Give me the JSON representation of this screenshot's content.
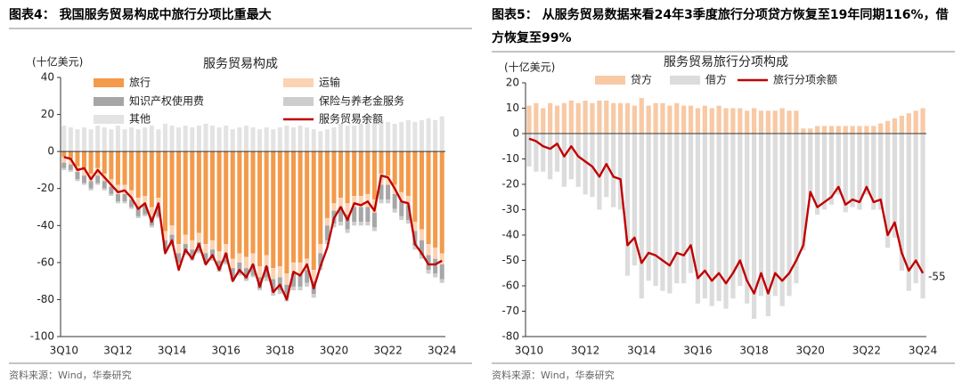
{
  "chart_data": [
    {
      "type": "bar",
      "caption": "图表4：  我国服务贸易构成中旅行分项比重最大",
      "title": "服务贸易构成",
      "unit": "(十亿美元)",
      "source": "资料来源：Wind，华泰研究",
      "categories": [
        "3Q10",
        null,
        null,
        null,
        null,
        null,
        null,
        null,
        "3Q12",
        null,
        null,
        null,
        null,
        null,
        null,
        null,
        "3Q14",
        null,
        null,
        null,
        null,
        null,
        null,
        null,
        "3Q16",
        null,
        null,
        null,
        null,
        null,
        null,
        null,
        "3Q18",
        null,
        null,
        null,
        null,
        null,
        null,
        null,
        "3Q20",
        null,
        null,
        null,
        null,
        null,
        null,
        null,
        "3Q22",
        null,
        null,
        null,
        null,
        null,
        null,
        null,
        "3Q24"
      ],
      "ylim": [
        -100,
        40
      ],
      "yticks": [
        -100,
        -80,
        -60,
        -40,
        -20,
        0,
        20,
        40
      ],
      "series": [
        {
          "name": "旅行",
          "color": "#f39a4b",
          "values": [
            -3,
            -4,
            -8,
            -9,
            -12,
            -9,
            -12,
            -15,
            -18,
            -18,
            -21,
            -25,
            -24,
            -30,
            -25,
            -43,
            -40,
            -50,
            -45,
            -48,
            -44,
            -50,
            -48,
            -54,
            -50,
            -58,
            -55,
            -57,
            -55,
            -62,
            -56,
            -63,
            -62,
            -66,
            -60,
            -60,
            -58,
            -64,
            -50,
            -36,
            -28,
            -25,
            -28,
            -24,
            -24,
            -23,
            -26,
            -12,
            -13,
            -18,
            -22,
            -24,
            -38,
            -42,
            -50,
            -52,
            -55
          ]
        },
        {
          "name": "运输",
          "color": "#fbd3b2",
          "values": [
            -3,
            -3,
            -3,
            -4,
            -4,
            -4,
            -4,
            -4,
            -5,
            -5,
            -5,
            -5,
            -5,
            -5,
            -5,
            -5,
            -5,
            -5,
            -5,
            -5,
            -5,
            -5,
            -5,
            -5,
            -5,
            -5,
            -5,
            -6,
            -6,
            -6,
            -6,
            -6,
            -6,
            -6,
            -6,
            -6,
            -6,
            -6,
            -5,
            -4,
            -4,
            -5,
            -6,
            -6,
            -6,
            -7,
            -7,
            -6,
            -5,
            -5,
            -5,
            -5,
            -5,
            -6,
            -6,
            -6,
            -6
          ]
        },
        {
          "name": "知识产权使用费",
          "color": "#a6a6a6",
          "values": [
            -3,
            -3,
            -4,
            -4,
            -4,
            -4,
            -4,
            -4,
            -4,
            -4,
            -4,
            -5,
            -5,
            -5,
            -5,
            -5,
            -5,
            -5,
            -5,
            -5,
            -5,
            -5,
            -5,
            -5,
            -5,
            -6,
            -6,
            -6,
            -6,
            -6,
            -6,
            -7,
            -7,
            -7,
            -7,
            -7,
            -7,
            -7,
            -7,
            -8,
            -7,
            -8,
            -8,
            -8,
            -8,
            -8,
            -8,
            -8,
            -8,
            -8,
            -8,
            -8,
            -8,
            -8,
            -8,
            -8,
            -8
          ]
        },
        {
          "name": "保险与养老金服务",
          "color": "#cdcdcd",
          "values": [
            -1,
            -1,
            -1,
            -1,
            -1,
            -1,
            -1,
            -1,
            -1,
            -1,
            -1,
            -1,
            -1,
            -1,
            -1,
            -1,
            -1,
            -1,
            -1,
            -1,
            -1,
            -1,
            -1,
            -1,
            -1,
            -1,
            -1,
            -1,
            -1,
            -1,
            -2,
            -2,
            -2,
            -2,
            -2,
            -2,
            -2,
            -2,
            -2,
            -2,
            -2,
            -2,
            -2,
            -2,
            -2,
            -2,
            -2,
            -2,
            -2,
            -2,
            -2,
            -2,
            -2,
            -2,
            -2,
            -2,
            -2
          ]
        },
        {
          "name": "其他",
          "color": "#e3e3e3",
          "values": [
            14,
            13,
            12,
            13,
            12,
            14,
            13,
            12,
            14,
            12,
            13,
            12,
            13,
            14,
            12,
            15,
            14,
            13,
            14,
            13,
            14,
            15,
            14,
            13,
            14,
            12,
            13,
            14,
            13,
            12,
            13,
            12,
            13,
            14,
            13,
            14,
            13,
            12,
            11,
            12,
            13,
            15,
            14,
            14,
            15,
            16,
            15,
            17,
            16,
            15,
            16,
            17,
            16,
            17,
            18,
            17,
            19
          ]
        },
        {
          "name": "服务贸易余额",
          "type": "line",
          "color": "#c00000",
          "values": [
            -3,
            -4,
            -10,
            -9,
            -15,
            -10,
            -14,
            -18,
            -22,
            -21,
            -25,
            -31,
            -28,
            -38,
            -28,
            -55,
            -48,
            -64,
            -53,
            -58,
            -50,
            -61,
            -56,
            -64,
            -55,
            -70,
            -64,
            -68,
            -61,
            -73,
            -62,
            -76,
            -72,
            -80,
            -65,
            -67,
            -61,
            -74,
            -62,
            -52,
            -36,
            -30,
            -37,
            -28,
            -29,
            -27,
            -32,
            -13,
            -14,
            -20,
            -27,
            -28,
            -50,
            -55,
            -61,
            -61,
            -59
          ]
        }
      ]
    },
    {
      "type": "bar",
      "caption": "图表5：  从服务贸易数据来看24年3季度旅行分项贷方恢复至19年同期116%，借方恢复至99%",
      "title": "服务贸易旅行分项构成",
      "unit": "(十亿美元)",
      "source": "资料来源：Wind，华泰研究",
      "categories": [
        "3Q10",
        null,
        null,
        null,
        null,
        null,
        null,
        null,
        "3Q12",
        null,
        null,
        null,
        null,
        null,
        null,
        null,
        "3Q14",
        null,
        null,
        null,
        null,
        null,
        null,
        null,
        "3Q16",
        null,
        null,
        null,
        null,
        null,
        null,
        null,
        "3Q18",
        null,
        null,
        null,
        null,
        null,
        null,
        null,
        "3Q20",
        null,
        null,
        null,
        null,
        null,
        null,
        null,
        "3Q22",
        null,
        null,
        null,
        null,
        null,
        null,
        null,
        "3Q24"
      ],
      "ylim": [
        -80,
        20
      ],
      "yticks": [
        -80,
        -70,
        -60,
        -50,
        -40,
        -30,
        -20,
        -10,
        0,
        10,
        20
      ],
      "series": [
        {
          "name": "贷方",
          "color": "#f8c9a5",
          "values": [
            11,
            12,
            10,
            12,
            11,
            12,
            13,
            12,
            13,
            12,
            13,
            13,
            12,
            12,
            12,
            11,
            14,
            11,
            12,
            12,
            11,
            12,
            11,
            11,
            10,
            11,
            10,
            11,
            10,
            10,
            10,
            9,
            10,
            9,
            9,
            9,
            10,
            9,
            9,
            2,
            2,
            3,
            3,
            3,
            3,
            3,
            3,
            3,
            3,
            3,
            4,
            5,
            6,
            7,
            8,
            9,
            10
          ]
        },
        {
          "name": "借方",
          "color": "#dcdcdc",
          "values": [
            -13,
            -15,
            -15,
            -18,
            -15,
            -21,
            -18,
            -21,
            -24,
            -25,
            -30,
            -25,
            -29,
            -30,
            -56,
            -52,
            -65,
            -58,
            -60,
            -62,
            -63,
            -59,
            -59,
            -55,
            -67,
            -65,
            -68,
            -66,
            -69,
            -65,
            -60,
            -67,
            -73,
            -64,
            -72,
            -64,
            -68,
            -64,
            -59,
            -46,
            -25,
            -32,
            -30,
            -28,
            -24,
            -31,
            -29,
            -30,
            -24,
            -30,
            -30,
            -45,
            -41,
            -54,
            -62,
            -59,
            -65
          ]
        },
        {
          "name": "旅行分项余额",
          "type": "line",
          "color": "#c00000",
          "end_label": true,
          "values": [
            -2,
            -3,
            -5,
            -6,
            -4,
            -9,
            -5,
            -9,
            -11,
            -13,
            -17,
            -12,
            -17,
            -18,
            -44,
            -41,
            -51,
            -47,
            -48,
            -50,
            -52,
            -47,
            -48,
            -44,
            -57,
            -54,
            -58,
            -55,
            -59,
            -55,
            -50,
            -58,
            -63,
            -55,
            -63,
            -55,
            -58,
            -55,
            -50,
            -44,
            -23,
            -29,
            -27,
            -25,
            -21,
            -28,
            -26,
            -27,
            -21,
            -27,
            -26,
            -40,
            -35,
            -47,
            -54,
            -50,
            -55
          ]
        }
      ]
    }
  ]
}
